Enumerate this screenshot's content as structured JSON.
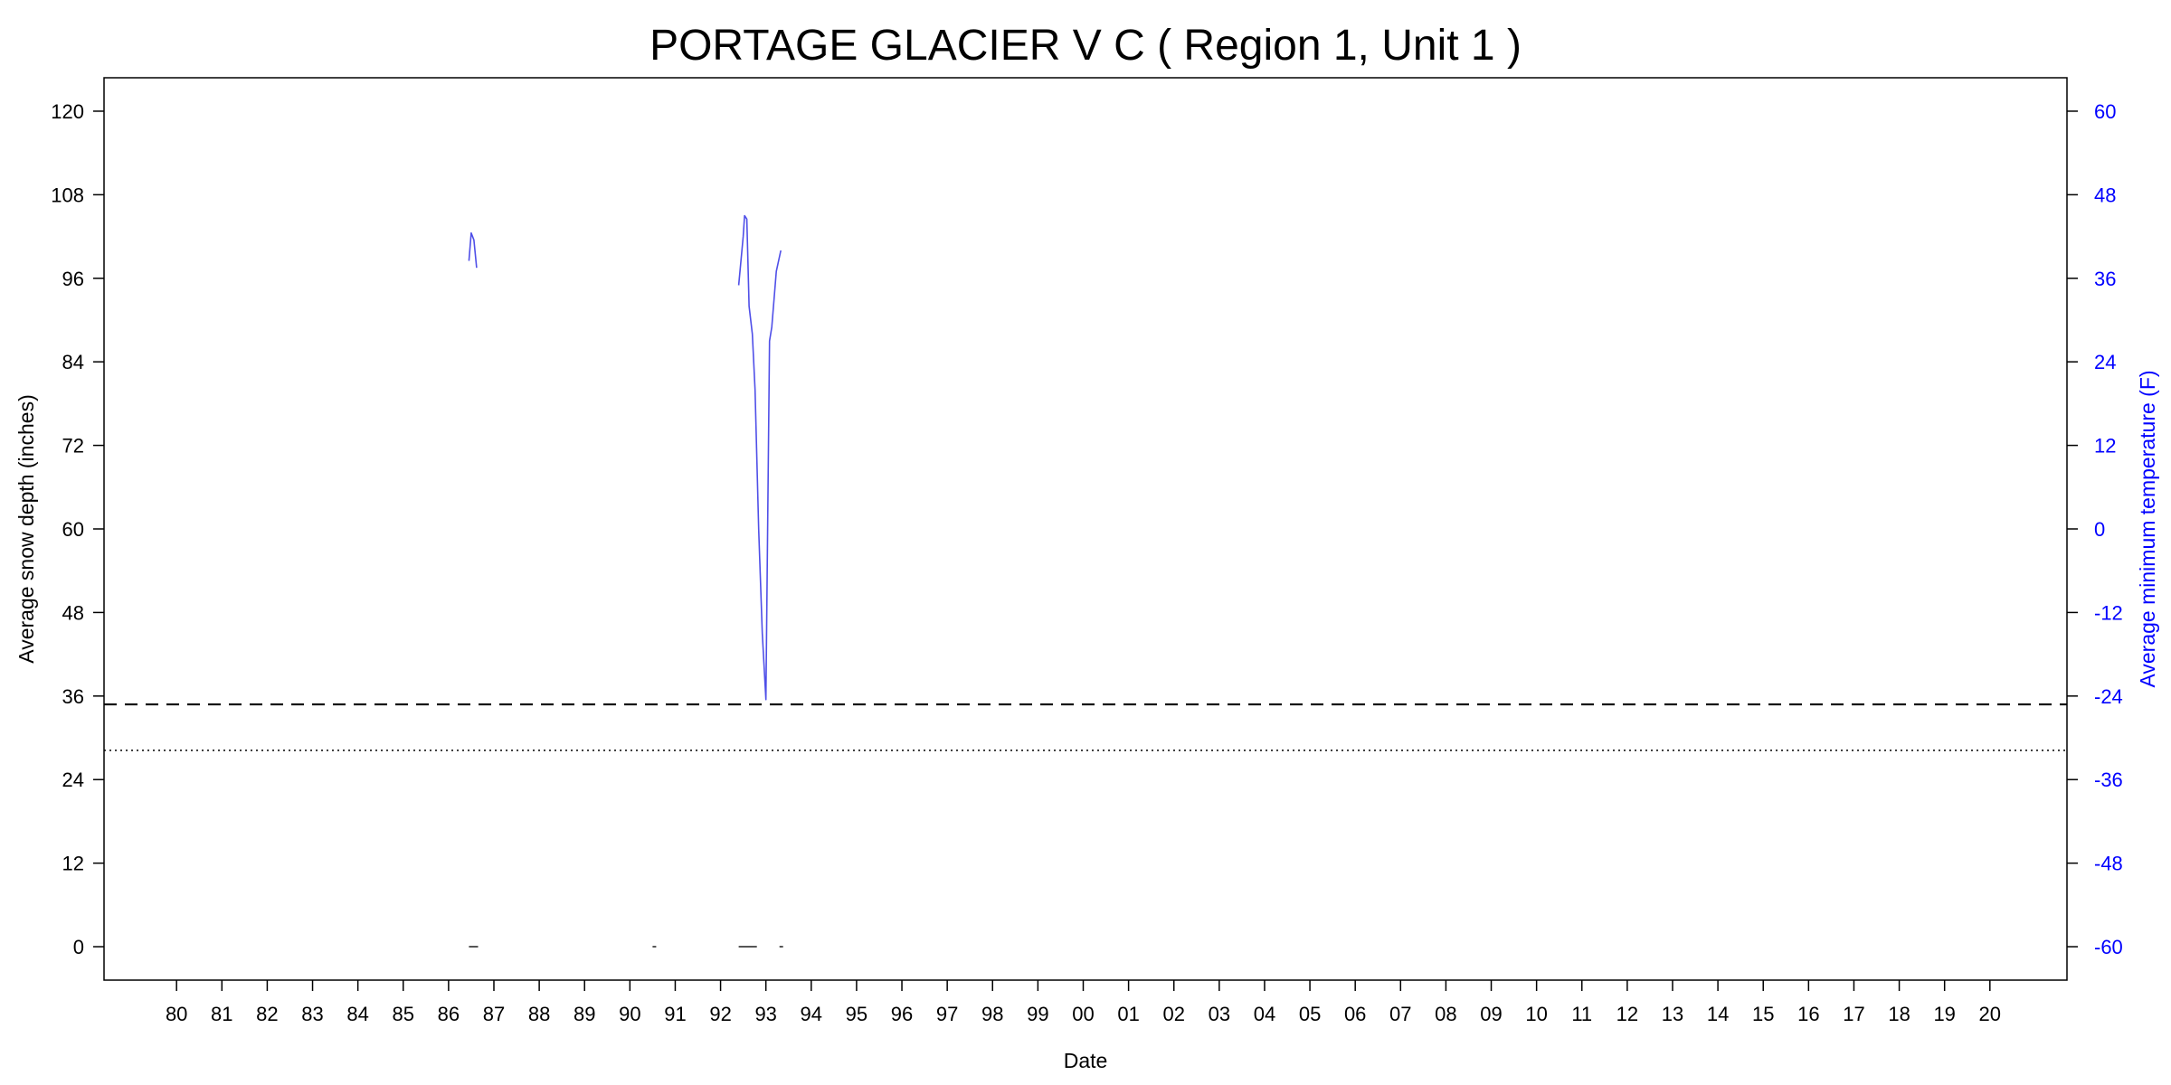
{
  "chart_data": {
    "type": "line",
    "title": "PORTAGE GLACIER V C ( Region 1, Unit 1 )",
    "xlabel": "Date",
    "ylabel": "Average snow depth (inches)",
    "y2label": "Average minimum temperature (F)",
    "x_tick_labels": [
      "80",
      "81",
      "82",
      "83",
      "84",
      "85",
      "86",
      "87",
      "88",
      "89",
      "90",
      "91",
      "92",
      "93",
      "94",
      "95",
      "96",
      "97",
      "98",
      "99",
      "00",
      "01",
      "02",
      "03",
      "04",
      "05",
      "06",
      "07",
      "08",
      "09",
      "10",
      "11",
      "12",
      "13",
      "14",
      "15",
      "16",
      "17",
      "18",
      "19",
      "20"
    ],
    "xlim": [
      1978.4,
      2021.7
    ],
    "ylim": [
      -4.8,
      124.8
    ],
    "y_ticks": [
      0,
      12,
      24,
      36,
      48,
      60,
      72,
      84,
      96,
      108,
      120
    ],
    "y2lim": [
      -64.8,
      64.8
    ],
    "y2_ticks": [
      -60,
      -48,
      -36,
      -24,
      -12,
      0,
      12,
      24,
      36,
      48,
      60
    ],
    "grid": false,
    "colors": {
      "temperature": "#4f4fe8",
      "right_axis": "#0000ff",
      "snow": "#555555",
      "reference": "#000000"
    },
    "reference_lines": [
      {
        "style": "dashed",
        "axis": "left",
        "value": 34.8
      },
      {
        "style": "dotted",
        "axis": "left",
        "value": 28.2
      }
    ],
    "series": [
      {
        "axis": "right",
        "segments": [
          [
            [
              1986.45,
              38.5
            ],
            [
              1986.5,
              42.5
            ],
            [
              1986.56,
              41.5
            ],
            [
              1986.62,
              37.5
            ]
          ],
          [
            [
              1992.4,
              35
            ],
            [
              1992.5,
              42
            ],
            [
              1992.53,
              45
            ],
            [
              1992.58,
              44.5
            ],
            [
              1992.63,
              32
            ],
            [
              1992.7,
              28
            ],
            [
              1992.76,
              20
            ],
            [
              1992.84,
              0
            ],
            [
              1992.92,
              -15
            ],
            [
              1993.0,
              -24.5
            ],
            [
              1993.08,
              27
            ],
            [
              1993.13,
              29
            ],
            [
              1993.23,
              37
            ],
            [
              1993.33,
              40
            ]
          ]
        ]
      },
      {
        "axis": "left",
        "segments": [
          [
            [
              1986.45,
              0
            ],
            [
              1986.65,
              0
            ]
          ],
          [
            [
              1990.5,
              0
            ],
            [
              1990.58,
              0
            ]
          ],
          [
            [
              1992.4,
              0
            ],
            [
              1992.8,
              0
            ]
          ],
          [
            [
              1993.3,
              0
            ],
            [
              1993.38,
              0
            ]
          ]
        ]
      }
    ]
  }
}
